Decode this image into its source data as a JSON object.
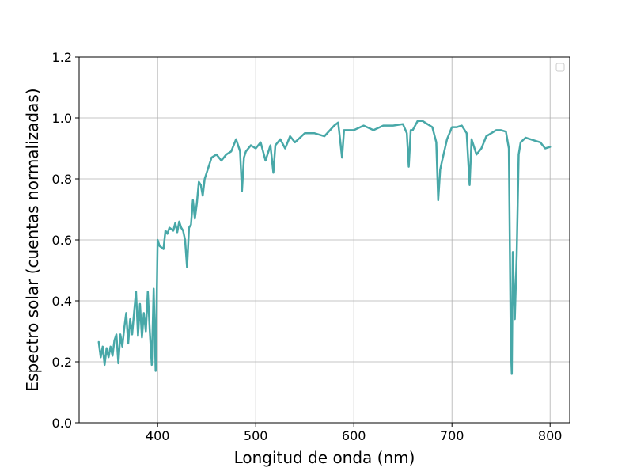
{
  "chart_data": {
    "type": "line",
    "title": "",
    "xlabel": "Longitud de onda (nm)",
    "ylabel": "Espectro solar (cuentas normalizadas)",
    "xlim": [
      320,
      820
    ],
    "ylim": [
      0.0,
      1.2
    ],
    "xticks": [
      "400",
      "500",
      "600",
      "700",
      "800"
    ],
    "yticks": [
      "0.0",
      "0.2",
      "0.4",
      "0.6",
      "0.8",
      "1.0",
      "1.2"
    ],
    "grid": true,
    "legend": {
      "placement": "top-right",
      "entries": []
    },
    "series": [
      {
        "color": "#48a8a8",
        "x": [
          340,
          342,
          344,
          346,
          348,
          350,
          352,
          354,
          356,
          358,
          360,
          362,
          364,
          366,
          368,
          370,
          372,
          374,
          376,
          378,
          380,
          382,
          384,
          386,
          388,
          390,
          392,
          394,
          396,
          398,
          400,
          402,
          404,
          406,
          408,
          410,
          412,
          414,
          416,
          418,
          420,
          422,
          424,
          426,
          428,
          430,
          432,
          434,
          436,
          438,
          440,
          442,
          444,
          446,
          448,
          450,
          455,
          460,
          465,
          470,
          475,
          480,
          484,
          486,
          488,
          490,
          495,
          500,
          505,
          510,
          515,
          518,
          520,
          525,
          530,
          535,
          540,
          550,
          560,
          570,
          580,
          584,
          586,
          588,
          590,
          595,
          600,
          610,
          620,
          630,
          640,
          650,
          654,
          656,
          658,
          660,
          665,
          670,
          680,
          684,
          686,
          688,
          690,
          695,
          700,
          705,
          710,
          715,
          718,
          720,
          725,
          730,
          735,
          740,
          745,
          750,
          755,
          758,
          760,
          761,
          762,
          764,
          766,
          768,
          770,
          775,
          780,
          785,
          790,
          795,
          800
        ],
        "values": [
          0.265,
          0.215,
          0.25,
          0.19,
          0.245,
          0.215,
          0.25,
          0.22,
          0.27,
          0.29,
          0.195,
          0.29,
          0.25,
          0.31,
          0.36,
          0.26,
          0.34,
          0.29,
          0.36,
          0.43,
          0.285,
          0.39,
          0.28,
          0.36,
          0.3,
          0.43,
          0.3,
          0.19,
          0.44,
          0.17,
          0.6,
          0.58,
          0.575,
          0.57,
          0.63,
          0.62,
          0.64,
          0.635,
          0.63,
          0.655,
          0.625,
          0.66,
          0.64,
          0.63,
          0.6,
          0.51,
          0.64,
          0.65,
          0.73,
          0.67,
          0.72,
          0.79,
          0.78,
          0.745,
          0.8,
          0.82,
          0.87,
          0.88,
          0.86,
          0.88,
          0.89,
          0.93,
          0.89,
          0.76,
          0.87,
          0.89,
          0.91,
          0.9,
          0.92,
          0.86,
          0.91,
          0.82,
          0.91,
          0.93,
          0.9,
          0.94,
          0.92,
          0.95,
          0.95,
          0.94,
          0.975,
          0.985,
          0.93,
          0.87,
          0.96,
          0.96,
          0.96,
          0.975,
          0.96,
          0.975,
          0.975,
          0.98,
          0.95,
          0.84,
          0.96,
          0.96,
          0.99,
          0.99,
          0.97,
          0.92,
          0.73,
          0.83,
          0.86,
          0.93,
          0.97,
          0.97,
          0.975,
          0.95,
          0.78,
          0.93,
          0.88,
          0.9,
          0.94,
          0.95,
          0.96,
          0.96,
          0.955,
          0.9,
          0.25,
          0.16,
          0.56,
          0.34,
          0.55,
          0.88,
          0.92,
          0.935,
          0.93,
          0.925,
          0.92,
          0.9,
          0.905
        ]
      }
    ]
  }
}
